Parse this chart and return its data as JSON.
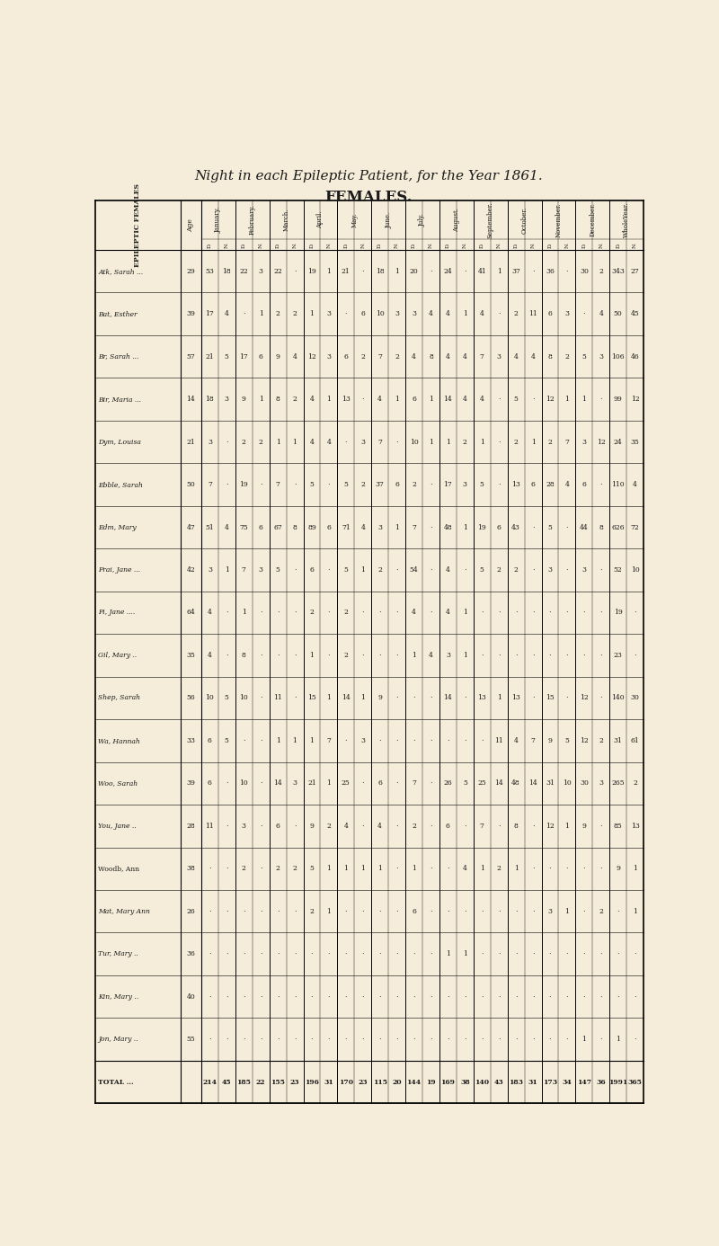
{
  "title": "Night in each Epileptic Patient, for the Year 1861.",
  "subtitle": "FEMALES.",
  "bg_color": "#f5edd9",
  "text_color": "#1a1a1a",
  "patients": [
    "Atk, Sarah ...",
    "Bat, Esther",
    "Br, Sarah ...",
    "Bir, Maria ...",
    "Dym, Louisa",
    "Ebble, Sarah",
    "Edm, Mary",
    "Frai, Jane ...",
    "Fi, Jane ....",
    "Gil, Mary ..",
    "Shep, Sarah",
    "Wa, Hannah",
    "Woo, Sarah",
    "You, Jane ..",
    "Woodb, Ann",
    "Mat, Mary Ann",
    "Tur, Mary ..",
    "Kin, Mary ..",
    "Jon, Mary ..",
    "TOTAL ..."
  ],
  "ages": [
    29,
    39,
    57,
    14,
    21,
    50,
    47,
    42,
    64,
    35,
    56,
    33,
    39,
    28,
    38,
    26,
    36,
    40,
    55,
    ""
  ],
  "columns": [
    "January",
    "February",
    "March",
    "April",
    "May",
    "June",
    "July",
    "August",
    "September",
    "October",
    "November",
    "December",
    "WholeYear"
  ],
  "data": {
    "January_D": [
      53,
      17,
      21,
      18,
      3,
      7,
      51,
      3,
      4,
      4,
      10,
      6,
      6,
      11,
      "",
      "",
      "",
      "",
      "",
      214
    ],
    "January_N": [
      18,
      4,
      5,
      3,
      "",
      "",
      4,
      1,
      "",
      "",
      5,
      5,
      "",
      "",
      "",
      "",
      "",
      "",
      "",
      45
    ],
    "February_D": [
      22,
      "",
      17,
      9,
      2,
      19,
      75,
      7,
      1,
      8,
      10,
      "",
      10,
      3,
      2,
      "",
      "",
      "",
      "",
      185
    ],
    "February_N": [
      3,
      1,
      6,
      1,
      2,
      "",
      6,
      3,
      "",
      "",
      "",
      "",
      "",
      "",
      "",
      "",
      "",
      "",
      "",
      22
    ],
    "March_D": [
      22,
      2,
      9,
      8,
      1,
      7,
      67,
      5,
      "",
      "",
      11,
      1,
      14,
      6,
      2,
      "",
      "",
      "",
      "",
      155
    ],
    "March_N": [
      "",
      2,
      4,
      2,
      1,
      "",
      8,
      "",
      "",
      "",
      "",
      1,
      3,
      "",
      2,
      "",
      "",
      "",
      "",
      23
    ],
    "April_D": [
      19,
      1,
      12,
      4,
      4,
      5,
      89,
      6,
      2,
      1,
      15,
      1,
      21,
      9,
      5,
      2,
      "",
      "",
      "",
      196
    ],
    "April_N": [
      1,
      3,
      3,
      1,
      4,
      "",
      6,
      "",
      "",
      "",
      1,
      7,
      1,
      2,
      1,
      1,
      "",
      "",
      "",
      31
    ],
    "May_D": [
      21,
      "",
      6,
      13,
      "",
      5,
      71,
      5,
      2,
      2,
      14,
      "",
      25,
      4,
      1,
      "",
      "",
      "",
      "",
      170
    ],
    "May_N": [
      "",
      6,
      2,
      "",
      3,
      2,
      4,
      1,
      "",
      "",
      1,
      3,
      "",
      "",
      1,
      "",
      "",
      "",
      "",
      23
    ],
    "June_D": [
      18,
      10,
      7,
      4,
      7,
      37,
      3,
      2,
      "",
      "",
      9,
      "",
      6,
      4,
      1,
      "",
      "",
      "",
      "",
      115
    ],
    "June_N": [
      1,
      3,
      2,
      1,
      "",
      6,
      1,
      "",
      "",
      "",
      "",
      "",
      "",
      "",
      "",
      "",
      "",
      "",
      "",
      20
    ],
    "July_D": [
      20,
      3,
      4,
      6,
      10,
      2,
      7,
      54,
      4,
      1,
      "",
      "",
      7,
      2,
      1,
      6,
      "",
      "",
      "",
      144
    ],
    "July_N": [
      "",
      4,
      8,
      1,
      1,
      "",
      "",
      "",
      "",
      4,
      "",
      "",
      "",
      "",
      "",
      "",
      "",
      "",
      "",
      19
    ],
    "August_D": [
      24,
      4,
      4,
      14,
      1,
      17,
      48,
      4,
      4,
      3,
      14,
      "",
      26,
      6,
      "",
      "",
      1,
      "",
      "",
      169
    ],
    "August_N": [
      "",
      1,
      4,
      4,
      2,
      3,
      1,
      "",
      1,
      1,
      "",
      "",
      5,
      "",
      4,
      "",
      1,
      "",
      "",
      38
    ],
    "September_D": [
      41,
      4,
      7,
      4,
      1,
      5,
      19,
      5,
      "",
      "",
      13,
      "",
      25,
      7,
      1,
      "",
      "",
      "",
      "",
      140
    ],
    "September_N": [
      1,
      "",
      3,
      "",
      "",
      "",
      6,
      2,
      "",
      "",
      1,
      11,
      14,
      "",
      2,
      "",
      "",
      "",
      "",
      43
    ],
    "October_D": [
      37,
      2,
      4,
      5,
      2,
      13,
      43,
      2,
      "",
      "",
      13,
      4,
      48,
      8,
      1,
      "",
      "",
      "",
      "",
      183
    ],
    "October_N": [
      "",
      11,
      4,
      "",
      1,
      6,
      "",
      "",
      "",
      "",
      "",
      7,
      14,
      "",
      "",
      "",
      "",
      "",
      "",
      31
    ],
    "November_D": [
      36,
      6,
      8,
      12,
      2,
      28,
      5,
      3,
      "",
      "",
      15,
      9,
      31,
      12,
      "",
      3,
      "",
      "",
      "",
      173
    ],
    "November_N": [
      "",
      3,
      2,
      1,
      7,
      4,
      "",
      "",
      "",
      "",
      "",
      5,
      10,
      1,
      "",
      1,
      "",
      "",
      "",
      34
    ],
    "December_D": [
      30,
      "",
      5,
      1,
      3,
      6,
      44,
      3,
      "",
      "",
      12,
      12,
      30,
      9,
      "",
      "",
      "",
      "",
      1,
      147
    ],
    "December_N": [
      2,
      4,
      3,
      "",
      12,
      "",
      8,
      "",
      "",
      "",
      "",
      2,
      3,
      "",
      "",
      2,
      "",
      "",
      "",
      36
    ],
    "WholeYear_D": [
      343,
      50,
      106,
      99,
      24,
      110,
      626,
      52,
      19,
      23,
      140,
      31,
      265,
      85,
      9,
      "",
      "",
      "",
      1,
      1991
    ],
    "WholeYear_N": [
      27,
      45,
      46,
      12,
      35,
      4,
      72,
      10,
      "",
      "",
      30,
      61,
      2,
      13,
      1,
      1,
      "",
      "",
      "",
      365
    ]
  }
}
